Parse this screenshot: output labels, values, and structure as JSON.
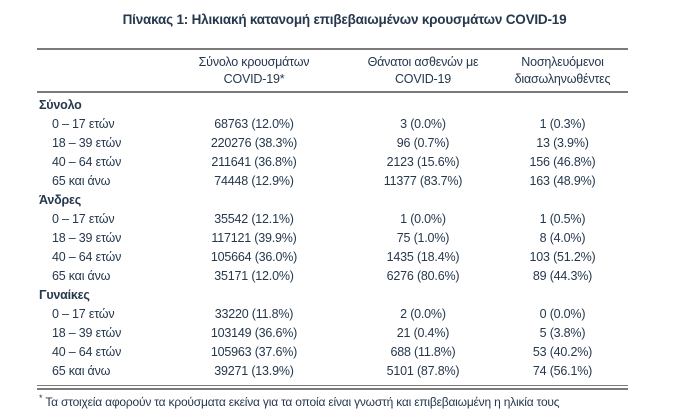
{
  "title": "Πίνακας 1: Ηλικιακή κατανομή επιβεβαιωμένων κρουσμάτων COVID-19",
  "table": {
    "columns": [
      {
        "line1": "Σύνολο κρουσμάτων",
        "line2": "COVID-19*"
      },
      {
        "line1": "Θάνατοι ασθενών με",
        "line2": "COVID-19"
      },
      {
        "line1": "Νοσηλευόμενοι",
        "line2": "διασωληνωθέντες"
      }
    ],
    "sections": [
      {
        "label": "Σύνολο",
        "rows": [
          {
            "age": "0 – 17 ετών",
            "cases": "68763 (12.0%)",
            "deaths": "3 (0.0%)",
            "intubated": "1 (0.3%)"
          },
          {
            "age": "18 – 39 ετών",
            "cases": "220276 (38.3%)",
            "deaths": "96 (0.7%)",
            "intubated": "13 (3.9%)"
          },
          {
            "age": "40 – 64 ετών",
            "cases": "211641 (36.8%)",
            "deaths": "2123 (15.6%)",
            "intubated": "156 (46.8%)"
          },
          {
            "age": "65 και άνω",
            "cases": "74448 (12.9%)",
            "deaths": "11377 (83.7%)",
            "intubated": "163 (48.9%)"
          }
        ]
      },
      {
        "label": "Άνδρες",
        "rows": [
          {
            "age": "0 – 17 ετών",
            "cases": "35542 (12.1%)",
            "deaths": "1 (0.0%)",
            "intubated": "1 (0.5%)"
          },
          {
            "age": "18 – 39 ετών",
            "cases": "117121 (39.9%)",
            "deaths": "75 (1.0%)",
            "intubated": "8 (4.0%)"
          },
          {
            "age": "40 – 64 ετών",
            "cases": "105664 (36.0%)",
            "deaths": "1435 (18.4%)",
            "intubated": "103 (51.2%)"
          },
          {
            "age": "65 και άνω",
            "cases": "35171 (12.0%)",
            "deaths": "6276 (80.6%)",
            "intubated": "89 (44.3%)"
          }
        ]
      },
      {
        "label": "Γυναίκες",
        "rows": [
          {
            "age": "0 – 17 ετών",
            "cases": "33220 (11.8%)",
            "deaths": "2 (0.0%)",
            "intubated": "0 (0.0%)"
          },
          {
            "age": "18 – 39 ετών",
            "cases": "103149 (36.6%)",
            "deaths": "21 (0.4%)",
            "intubated": "5 (3.8%)"
          },
          {
            "age": "40 – 64 ετών",
            "cases": "105963 (37.6%)",
            "deaths": "688 (11.8%)",
            "intubated": "53 (40.2%)"
          },
          {
            "age": "65 και άνω",
            "cases": "39271 (13.9%)",
            "deaths": "5101 (87.8%)",
            "intubated": "74 (56.1%)"
          }
        ]
      }
    ]
  },
  "footnote": {
    "marker": "*",
    "text": "Τα στοιχεία αφορούν τα κρούσματα εκείνα για τα οποία είναι γνωστή και επιβεβαιωμένη η ηλικία τους"
  },
  "colors": {
    "text": "#25384d",
    "rule": "#7b7b7b",
    "background": "#ffffff"
  }
}
